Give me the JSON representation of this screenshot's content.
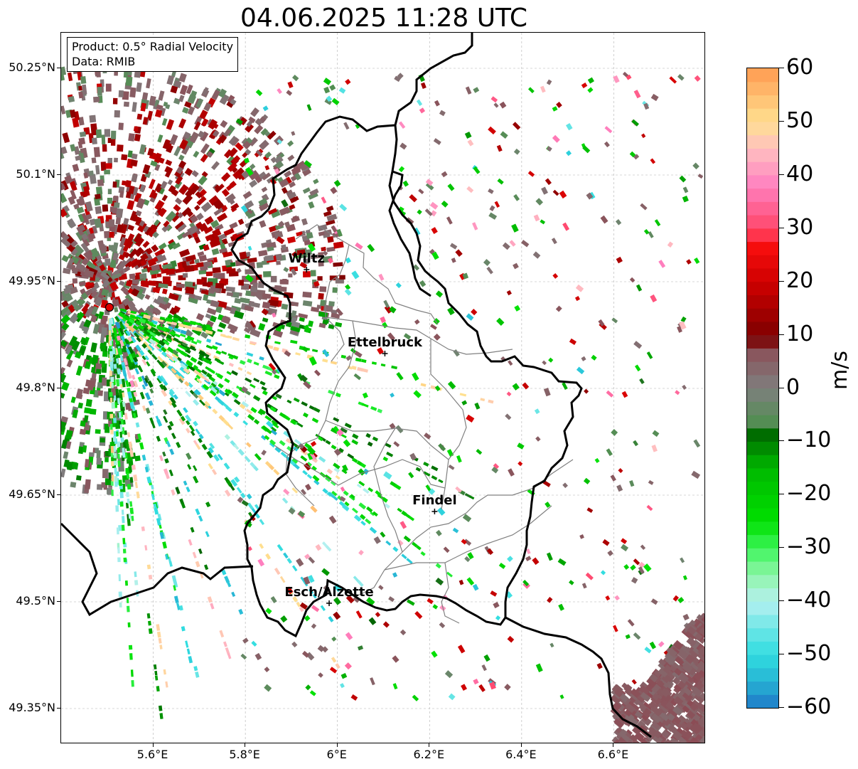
{
  "title": "04.06.2025 11:28 UTC",
  "info_box": {
    "product": "Product: 0.5° Radial Velocity",
    "data": "Data: RMIB"
  },
  "axes": {
    "lat_ticks": [
      "50.25°N",
      "50.1°N",
      "49.95°N",
      "49.8°N",
      "49.65°N",
      "49.5°N",
      "49.35°N"
    ],
    "lat_values": [
      50.25,
      50.1,
      49.95,
      49.8,
      49.65,
      49.5,
      49.35
    ],
    "lon_ticks": [
      "5.6°E",
      "5.8°E",
      "6°E",
      "6.2°E",
      "6.4°E",
      "6.6°E"
    ],
    "lon_values": [
      5.6,
      5.8,
      6.0,
      6.2,
      6.4,
      6.6
    ],
    "lat_range": [
      49.3,
      50.3
    ],
    "lon_range": [
      5.4,
      6.8
    ],
    "grid": true
  },
  "cities": [
    {
      "name": "Wiltz",
      "lat": 49.967,
      "lon": 5.933
    },
    {
      "name": "Ettelbruck",
      "lat": 49.849,
      "lon": 6.103
    },
    {
      "name": "Findel",
      "lat": 49.627,
      "lon": 6.211
    },
    {
      "name": "Esch/Alzette",
      "lat": 49.498,
      "lon": 5.982
    }
  ],
  "radar_site": {
    "lat": 49.914,
    "lon": 5.505,
    "color": "#e00000"
  },
  "colorbar": {
    "unit": "m/s",
    "min": -60,
    "max": 60,
    "ticks": [
      "60",
      "50",
      "40",
      "30",
      "20",
      "10",
      "0",
      "−10",
      "−20",
      "−30",
      "−40",
      "−50",
      "−60"
    ],
    "tick_values": [
      60,
      50,
      40,
      30,
      20,
      10,
      0,
      -10,
      -20,
      -30,
      -40,
      -50,
      -60
    ],
    "stops": [
      {
        "v": -60,
        "color": "#1f78c8"
      },
      {
        "v": -55,
        "color": "#27b4d4"
      },
      {
        "v": -50,
        "color": "#30dde0"
      },
      {
        "v": -45,
        "color": "#6ee6e6"
      },
      {
        "v": -40,
        "color": "#b6f0f0"
      },
      {
        "v": -35,
        "color": "#8ef5a8"
      },
      {
        "v": -30,
        "color": "#3cf55a"
      },
      {
        "v": -25,
        "color": "#00e000"
      },
      {
        "v": -15,
        "color": "#00b800"
      },
      {
        "v": -8,
        "color": "#006400"
      },
      {
        "v": -7,
        "color": "#4f8f4f"
      },
      {
        "v": 0,
        "color": "#7f7f7f"
      },
      {
        "v": 8,
        "color": "#8c4c55"
      },
      {
        "v": 9,
        "color": "#780000"
      },
      {
        "v": 20,
        "color": "#d00000"
      },
      {
        "v": 28,
        "color": "#ff1010"
      },
      {
        "v": 29,
        "color": "#ff4060"
      },
      {
        "v": 38,
        "color": "#ff80c0"
      },
      {
        "v": 45,
        "color": "#ffc0c0"
      },
      {
        "v": 50,
        "color": "#ffe090"
      },
      {
        "v": 60,
        "color": "#ff9a50"
      }
    ]
  },
  "colors": {
    "border_country": "#000000",
    "border_canton": "#808080",
    "grid": "#b0b0b0"
  }
}
